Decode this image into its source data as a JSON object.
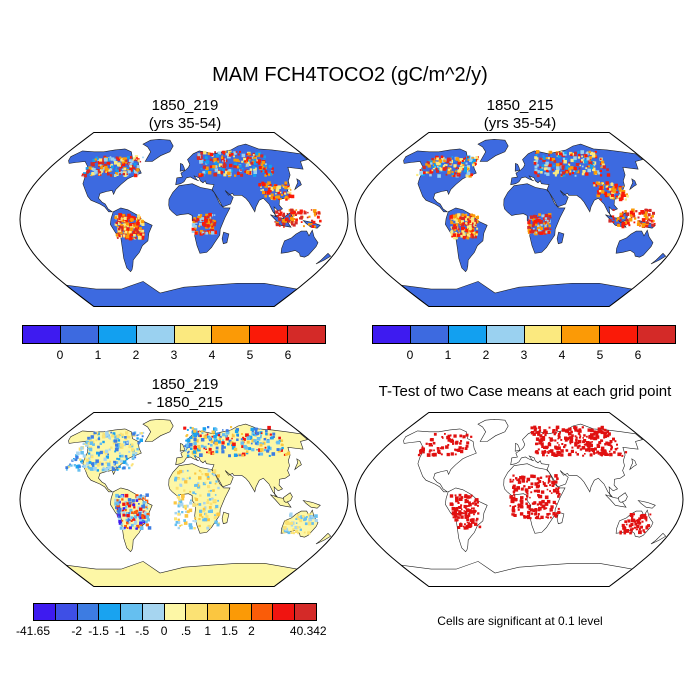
{
  "title": "MAM FCH4TOCO2 (gC/m^2/y)",
  "panels": {
    "case1": {
      "title_line1": "1850_219",
      "title_line2": "(yrs 35-54)"
    },
    "case2": {
      "title_line1": "1850_215",
      "title_line2": "(yrs 35-54)"
    },
    "diff": {
      "title_line1": "1850_219",
      "title_line2": "- 1850_215"
    },
    "ttest": {
      "title": "T-Test of two Case means at each grid point",
      "note": "Cells are significant at 0.1 level"
    }
  },
  "colorbar_main": {
    "colors": [
      "#3e1bf0",
      "#3d6ae0",
      "#12a0f0",
      "#9ad1f0",
      "#fbe97f",
      "#fb9a06",
      "#fa1a08",
      "#d42a28"
    ],
    "labels": [
      "0",
      "1",
      "2",
      "3",
      "4",
      "5",
      "6"
    ]
  },
  "colorbar_diff": {
    "colors": [
      "#3e1bf0",
      "#3e4fe6",
      "#3d7ce2",
      "#19a3f0",
      "#65bff0",
      "#a6d5f0",
      "#fdf7a6",
      "#fbe274",
      "#fbc640",
      "#fb9a06",
      "#fa5c08",
      "#f01410",
      "#d42a28"
    ],
    "labels": [
      "-41.65",
      "-2",
      "-1.5",
      "-1",
      "-.5",
      "0",
      ".5",
      "1",
      "1.5",
      "2",
      "40.342"
    ]
  },
  "map_colors": {
    "ocean": "#ffffff",
    "land_main": "#3d6ae0",
    "land_diff": "#fdf7a6",
    "land_ttest": "#ffffff",
    "significant": "#e01010"
  }
}
